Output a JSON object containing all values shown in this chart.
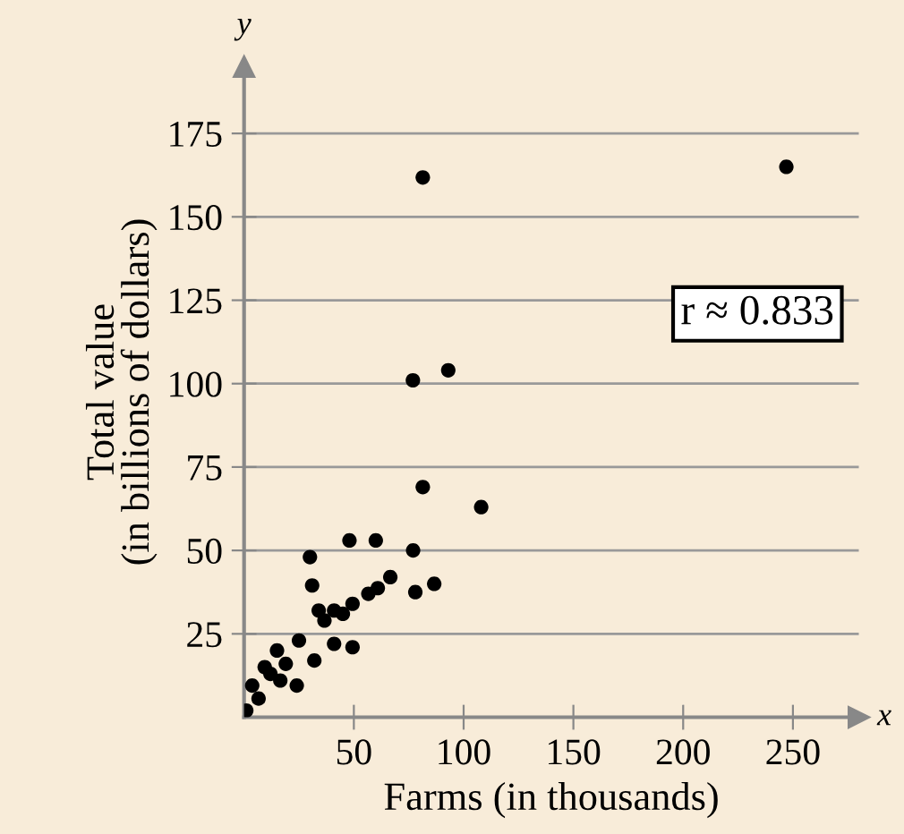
{
  "chart_data": {
    "type": "scatter",
    "xlabel": "Farms (in thousands)",
    "ylabel": "Total value\n(in billions of dollars)",
    "annotations": [
      "r ≈ 0.833",
      "x",
      "y"
    ],
    "x": [
      247,
      81.4,
      76.9,
      93,
      81.4,
      108,
      30,
      48,
      60,
      77,
      66.6,
      86.6,
      78,
      31,
      34,
      41,
      49.4,
      56.6,
      60.9,
      49.4,
      41,
      25,
      32,
      24,
      15,
      9.4,
      3.7,
      1,
      6.6,
      12,
      19,
      16.5,
      36.6,
      45
    ],
    "values": [
      165,
      161.8,
      101,
      104,
      69,
      63,
      48,
      53,
      53,
      50,
      42,
      40,
      37.5,
      39.5,
      32,
      32,
      34,
      37,
      38.7,
      21,
      22,
      23,
      17,
      9.5,
      20,
      15,
      9.5,
      2,
      5.6,
      13,
      16,
      11,
      29,
      31
    ],
    "color": "#000000",
    "marker": "circle",
    "grid": "y",
    "xlim": [
      0,
      280
    ],
    "ylim": [
      0,
      195
    ],
    "xticks": [
      50,
      100,
      150,
      200,
      250
    ],
    "yticks": [
      25,
      50,
      75,
      100,
      125,
      150,
      175
    ]
  }
}
